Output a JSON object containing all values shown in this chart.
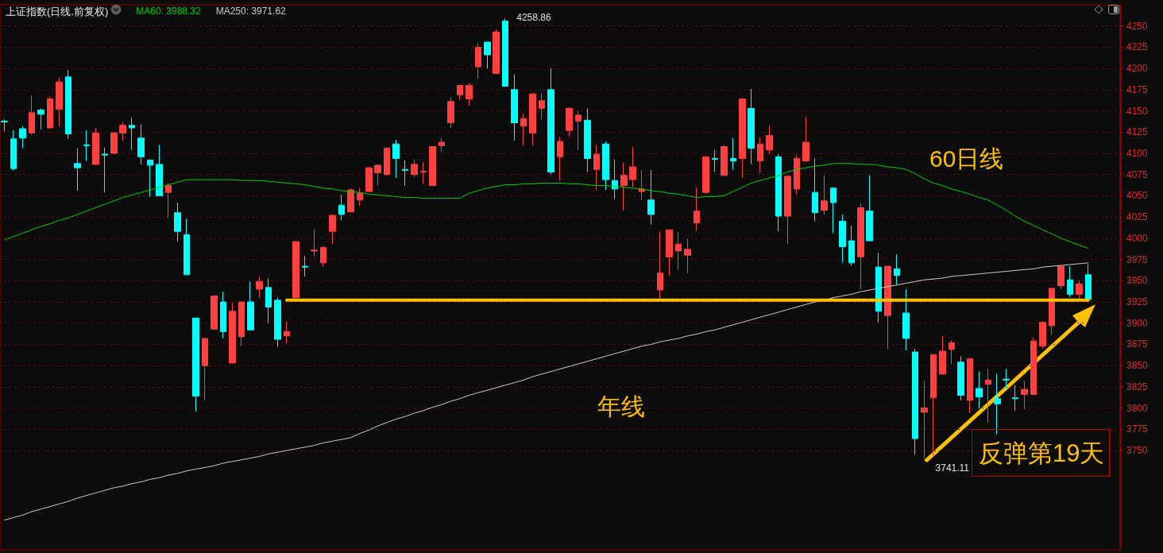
{
  "chart_data": {
    "type": "candlestick",
    "title": "上证指数(日线.前复权)",
    "categories": [
      null,
      null,
      null,
      null,
      null,
      null,
      null,
      null,
      null,
      null,
      null,
      null,
      null,
      null,
      null,
      null,
      null,
      null,
      null,
      null,
      null,
      null,
      null,
      null,
      null,
      null,
      null,
      null,
      null,
      null,
      null,
      null,
      null,
      null,
      null,
      null,
      null,
      null,
      null,
      null,
      null,
      null,
      null,
      null,
      null,
      null,
      null,
      null,
      null,
      null,
      null,
      null,
      null,
      null,
      null,
      null,
      null,
      null,
      null,
      null,
      null,
      null,
      null,
      null,
      null,
      null,
      null,
      null,
      null,
      null,
      null,
      null,
      null,
      null,
      null,
      null,
      null,
      null,
      null,
      null,
      null,
      null,
      null,
      null,
      null,
      null,
      null,
      null,
      null,
      null,
      null,
      null,
      null,
      null,
      null,
      null,
      null,
      null,
      null,
      null,
      null,
      null,
      null,
      null,
      null,
      null,
      null,
      null,
      null,
      null,
      null,
      null,
      null,
      null,
      null,
      null,
      null,
      null,
      null,
      null
    ],
    "ohlc": [
      [
        4138,
        4140,
        4126,
        4137
      ],
      [
        4117,
        4127,
        4080,
        4082
      ],
      [
        4129,
        4132,
        4106,
        4118
      ],
      [
        4124,
        4168,
        4122,
        4148
      ],
      [
        4151,
        4153,
        4128,
        4146
      ],
      [
        4130,
        4167,
        4129,
        4164
      ],
      [
        4152,
        4189,
        4132,
        4184
      ],
      [
        4190,
        4198,
        4117,
        4123
      ],
      [
        4088,
        4106,
        4056,
        4083
      ],
      [
        4110,
        4127,
        4091,
        4109
      ],
      [
        4087,
        4130,
        4086,
        4124
      ],
      [
        4099,
        4107,
        4054,
        4098
      ],
      [
        4100,
        4125,
        4099,
        4124
      ],
      [
        4124,
        4137,
        4115,
        4133
      ],
      [
        4133,
        4142,
        4104,
        4130
      ],
      [
        4118,
        4134,
        4087,
        4096
      ],
      [
        4092,
        4093,
        4049,
        4086
      ],
      [
        4087,
        4110,
        4050,
        4050
      ],
      [
        4054,
        4065,
        4024,
        4062
      ],
      [
        4030,
        4042,
        3996,
        4008
      ],
      [
        4004,
        4023,
        3957,
        3957
      ],
      [
        3906,
        3906,
        3796,
        3814
      ],
      [
        3850,
        3882,
        3809,
        3882
      ],
      [
        3893,
        3933,
        3892,
        3932
      ],
      [
        3925,
        3937,
        3882,
        3890
      ],
      [
        3853,
        3924,
        3853,
        3914
      ],
      [
        3884,
        3925,
        3873,
        3925
      ],
      [
        3925,
        3949,
        3892,
        3892
      ],
      [
        3940,
        3955,
        3930,
        3949
      ],
      [
        3942,
        3953,
        3900,
        3919
      ],
      [
        3927,
        3930,
        3872,
        3881
      ],
      [
        3885,
        3902,
        3876,
        3890
      ],
      [
        3930,
        3996,
        3928,
        3996
      ],
      [
        3967,
        3979,
        3955,
        3966
      ],
      [
        3985,
        4011,
        3979,
        3986
      ],
      [
        3971,
        3991,
        3966,
        3989
      ],
      [
        4008,
        4027,
        3993,
        4027
      ],
      [
        4039,
        4051,
        4021,
        4028
      ],
      [
        4031,
        4059,
        4031,
        4057
      ],
      [
        4045,
        4059,
        4038,
        4053
      ],
      [
        4055,
        4084,
        4054,
        4083
      ],
      [
        4077,
        4087,
        4062,
        4086
      ],
      [
        4075,
        4107,
        4074,
        4106
      ],
      [
        4111,
        4116,
        4071,
        4094
      ],
      [
        4081,
        4092,
        4062,
        4080
      ],
      [
        4075,
        4093,
        4072,
        4087
      ],
      [
        4078,
        4090,
        4064,
        4079
      ],
      [
        4062,
        4108,
        4062,
        4108
      ],
      [
        4109,
        4118,
        4102,
        4113
      ],
      [
        4136,
        4166,
        4130,
        4161
      ],
      [
        4169,
        4180,
        4163,
        4180
      ],
      [
        4164,
        4183,
        4156,
        4180
      ],
      [
        4202,
        4230,
        4188,
        4225
      ],
      [
        4231,
        4231,
        4200,
        4216
      ],
      [
        4194,
        4246,
        4194,
        4243
      ],
      [
        4256,
        4258.86,
        4179,
        4179
      ],
      [
        4175,
        4193,
        4115,
        4136
      ],
      [
        4132,
        4147,
        4109,
        4141
      ],
      [
        4124,
        4171,
        4109,
        4170
      ],
      [
        4153,
        4171,
        4140,
        4162
      ],
      [
        4175,
        4200,
        4075,
        4078
      ],
      [
        4096,
        4119,
        4068,
        4114
      ],
      [
        4127,
        4154,
        4120,
        4153
      ],
      [
        4138,
        4150,
        4104,
        4145
      ],
      [
        4139,
        4153,
        4078,
        4094
      ],
      [
        4081,
        4110,
        4057,
        4099
      ],
      [
        4111,
        4114,
        4057,
        4069
      ],
      [
        4068,
        4093,
        4046,
        4058
      ],
      [
        4062,
        4089,
        4033,
        4074
      ],
      [
        4069,
        4107,
        4060,
        4084
      ],
      [
        4055,
        4080,
        4045,
        4058
      ],
      [
        4045,
        4080,
        4016,
        4028
      ],
      [
        3939,
        4008,
        3929,
        3959
      ],
      [
        3978,
        4010,
        3956,
        4010
      ],
      [
        3985,
        4007,
        3963,
        3993
      ],
      [
        3980,
        3999,
        3959,
        3987
      ],
      [
        4018,
        4060,
        4009,
        4032
      ],
      [
        4054,
        4096,
        4052,
        4096
      ],
      [
        4094,
        4104,
        4078,
        4093
      ],
      [
        4074,
        4110,
        4074,
        4108
      ],
      [
        4094,
        4118,
        4081,
        4091
      ],
      [
        4094,
        4165,
        4071,
        4164
      ],
      [
        4153,
        4176,
        4087,
        4106
      ],
      [
        4091,
        4118,
        4077,
        4111
      ],
      [
        4104,
        4133,
        4099,
        4121
      ],
      [
        4096,
        4099,
        4008,
        4026
      ],
      [
        4026,
        4074,
        3993,
        4073
      ],
      [
        4058,
        4098,
        4052,
        4094
      ],
      [
        4091,
        4143,
        4090,
        4113
      ],
      [
        4054,
        4094,
        4020,
        4030
      ],
      [
        4033,
        4074,
        4028,
        4044
      ],
      [
        4059,
        4060,
        4006,
        4042
      ],
      [
        4020,
        4028,
        3971,
        3990
      ],
      [
        3997,
        4015,
        3968,
        3971
      ],
      [
        3978,
        4041,
        3940,
        4036
      ],
      [
        4032,
        4074,
        3997,
        3997
      ],
      [
        3966,
        3983,
        3901,
        3914
      ],
      [
        3909,
        3967,
        3870,
        3967
      ],
      [
        3964,
        3981,
        3945,
        3956
      ],
      [
        3912,
        3940,
        3868,
        3882
      ],
      [
        3866,
        3870,
        3745,
        3764
      ],
      [
        3795,
        3832,
        3741.11,
        3800
      ],
      [
        3812,
        3863,
        3744,
        3863
      ],
      [
        3840,
        3885,
        3840,
        3867
      ],
      [
        3869,
        3880,
        3852,
        3877
      ],
      [
        3854,
        3861,
        3809,
        3815
      ],
      [
        3809,
        3858,
        3794,
        3858
      ],
      [
        3823,
        3843,
        3800,
        3813
      ],
      [
        3828,
        3846,
        3783,
        3833
      ],
      [
        3811,
        3840,
        3769,
        3805
      ],
      [
        3834,
        3846,
        3822,
        3833
      ],
      [
        3812,
        3827,
        3797,
        3811
      ],
      [
        3816,
        3832,
        3799,
        3822
      ],
      [
        3816,
        3883,
        3816,
        3879
      ],
      [
        3873,
        3902,
        3870,
        3901
      ],
      [
        3897,
        3941,
        3886,
        3941
      ],
      [
        3944,
        3967,
        3940,
        3967
      ],
      [
        3951,
        3967,
        3931,
        3934
      ],
      [
        3934,
        3950,
        3928,
        3946
      ],
      [
        3957,
        3969,
        3928,
        3928
      ]
    ],
    "colors": [
      "#00ffff",
      "#00ffff",
      "#00ffff",
      "#ff4040",
      "#00ffff",
      "#ff4040",
      "#ff4040",
      "#00ffff",
      "#00ffff",
      "#00ffff",
      "#ff4040",
      "#00ffff",
      "#ff4040",
      "#ff4040",
      "#00ffff",
      "#00ffff",
      "#00ffff",
      "#00ffff",
      "#ff4040",
      "#00ffff",
      "#00ffff",
      "#00ffff",
      "#ff4040",
      "#ff4040",
      "#00ffff",
      "#ff4040",
      "#ff4040",
      "#00ffff",
      "#ff4040",
      "#00ffff",
      "#00ffff",
      "#ff4040",
      "#ff4040",
      "#00ffff",
      "#ff4040",
      "#ff4040",
      "#ff4040",
      "#00ffff",
      "#ff4040",
      "#ff4040",
      "#ff4040",
      "#ff4040",
      "#ff4040",
      "#00ffff",
      "#00ffff",
      "#ff4040",
      "#ff4040",
      "#ff4040",
      "#ff4040",
      "#ff4040",
      "#ff4040",
      "#ff4040",
      "#ff4040",
      "#00ffff",
      "#ff4040",
      "#00ffff",
      "#00ffff",
      "#ff4040",
      "#ff4040",
      "#ff4040",
      "#00ffff",
      "#ff4040",
      "#ff4040",
      "#ff4040",
      "#00ffff",
      "#ff4040",
      "#00ffff",
      "#00ffff",
      "#ff4040",
      "#ff4040",
      "#ff4040",
      "#00ffff",
      "#ff4040",
      "#ff4040",
      "#ff4040",
      "#ff4040",
      "#ff4040",
      "#ff4040",
      "#00ffff",
      "#ff4040",
      "#00ffff",
      "#ff4040",
      "#00ffff",
      "#ff4040",
      "#ff4040",
      "#00ffff",
      "#ff4040",
      "#ff4040",
      "#ff4040",
      "#00ffff",
      "#ff4040",
      "#00ffff",
      "#00ffff",
      "#00ffff",
      "#ff4040",
      "#00ffff",
      "#00ffff",
      "#ff4040",
      "#00ffff",
      "#00ffff",
      "#00ffff",
      "#ff4040",
      "#ff4040",
      "#ff4040",
      "#ff4040",
      "#00ffff",
      "#ff4040",
      "#00ffff",
      "#ff4040",
      "#00ffff",
      "#00ffff",
      "#00ffff",
      "#ff4040",
      "#ff4040",
      "#ff4040",
      "#ff4040",
      "#ff4040",
      "#00ffff",
      "#ff4040",
      "#00ffff"
    ],
    "series": [
      {
        "name": "MA60: 3988.32",
        "type": "line",
        "color": "#00d000",
        "values": [
          3998,
          4002,
          4006,
          4010,
          4014,
          4017,
          4021,
          4024,
          4028,
          4032,
          4036,
          4040,
          4044,
          4048,
          4051,
          4054,
          4057,
          4060,
          4063,
          4066,
          4069,
          4069,
          4069,
          4069,
          4069,
          4069,
          4068,
          4068,
          4068,
          4067,
          4066,
          4065,
          4064,
          4063,
          4061,
          4059,
          4058,
          4056,
          4055,
          4054,
          4052,
          4051,
          4050,
          4049,
          4048,
          4048,
          4047,
          4047,
          4047,
          4047,
          4047,
          4053,
          4056,
          4059,
          4061,
          4063,
          4063,
          4064,
          4064,
          4065,
          4065,
          4065,
          4064,
          4064,
          4063,
          4062,
          4062,
          4061,
          4060,
          4059,
          4058,
          4056,
          4055,
          4053,
          4052,
          4050,
          4048,
          4049,
          4049,
          4050,
          4055,
          4060,
          4065,
          4068,
          4071,
          4074,
          4078,
          4081,
          4083,
          4085,
          4086,
          4088,
          4088,
          4088,
          4087,
          4087,
          4086,
          4084,
          4083,
          4081,
          4076,
          4070,
          4065,
          4062,
          4058,
          4055,
          4052,
          4048,
          4045,
          4039,
          4033,
          4026,
          4020,
          4015,
          4010,
          4005,
          4000,
          3996,
          3992,
          3988
        ]
      },
      {
        "name": "MA250: 3971.62",
        "type": "line",
        "color": "#cccccc",
        "values": [
          3668,
          3671,
          3674,
          3678,
          3681,
          3684,
          3687,
          3690,
          3694,
          3697,
          3700,
          3703,
          3706,
          3708,
          3711,
          3713,
          3716,
          3718,
          3721,
          3723,
          3726,
          3728,
          3730,
          3732,
          3735,
          3737,
          3739,
          3741,
          3743,
          3746,
          3748,
          3750,
          3752,
          3754,
          3756,
          3759,
          3761,
          3763,
          3765,
          3770,
          3774,
          3779,
          3783,
          3787,
          3790,
          3794,
          3797,
          3801,
          3804,
          3808,
          3811,
          3815,
          3818,
          3821,
          3824,
          3827,
          3830,
          3833,
          3837,
          3840,
          3843,
          3846,
          3849,
          3852,
          3855,
          3858,
          3861,
          3864,
          3867,
          3870,
          3873,
          3875,
          3878,
          3880,
          3882,
          3885,
          3887,
          3890,
          3892,
          3895,
          3898,
          3901,
          3904,
          3907,
          3910,
          3913,
          3916,
          3919,
          3922,
          3925,
          3927,
          3930,
          3932,
          3934,
          3937,
          3939,
          3941,
          3943,
          3945,
          3947,
          3949,
          3951,
          3952,
          3953,
          3955,
          3956,
          3957,
          3958,
          3959,
          3960,
          3961,
          3962,
          3963,
          3964,
          3966,
          3967,
          3968,
          3969,
          3970,
          3971
        ]
      },
      {
        "type": "line",
        "color": "#ffc000",
        "values": [
          null,
          null,
          null,
          null,
          null,
          null,
          null,
          null,
          null,
          null,
          null,
          null,
          null,
          null,
          null,
          null,
          null,
          null,
          null,
          null,
          null,
          null,
          null,
          null,
          null,
          null,
          null,
          null,
          null,
          null,
          null,
          3927,
          3927,
          3927,
          3927,
          3927,
          3927,
          3927,
          3927,
          3927,
          3927,
          3927,
          3927,
          3927,
          3927,
          3927,
          3927,
          3927,
          3927,
          3927,
          3927,
          3927,
          3927,
          3927,
          3927,
          3927,
          3927,
          3927,
          3927,
          3927,
          3927,
          3927,
          3927,
          3927,
          3927,
          3927,
          3927,
          3927,
          3927,
          3927,
          3927,
          3927,
          3927,
          3927,
          3927,
          3927,
          3927,
          3927,
          3927,
          3927,
          3927,
          3927,
          3927,
          3927,
          3927,
          3927,
          3927,
          3927,
          3927,
          3927,
          3927,
          3927,
          3927,
          3927,
          3927,
          3927,
          3927,
          3927,
          3927,
          3927,
          3927,
          3927,
          3927,
          3927,
          3927,
          3927,
          3927,
          3927,
          3927,
          3927,
          3927,
          3927,
          3927,
          3927,
          3927,
          3927,
          3927,
          3927,
          3927,
          3927
        ]
      }
    ],
    "ylim": [
      3633,
      4275
    ],
    "yticks": [
      3750,
      3775,
      3800,
      3825,
      3850,
      3875,
      3900,
      3925,
      3950,
      3975,
      4000,
      4025,
      4050,
      4075,
      4100,
      4125,
      4150,
      4175,
      4200,
      4225,
      4250
    ],
    "grid": "y",
    "legend": "top left",
    "tick_labels": "y",
    "annotations": [
      "4258.86",
      "3741.11",
      "60日线",
      "年线",
      "反弹第19天"
    ]
  }
}
